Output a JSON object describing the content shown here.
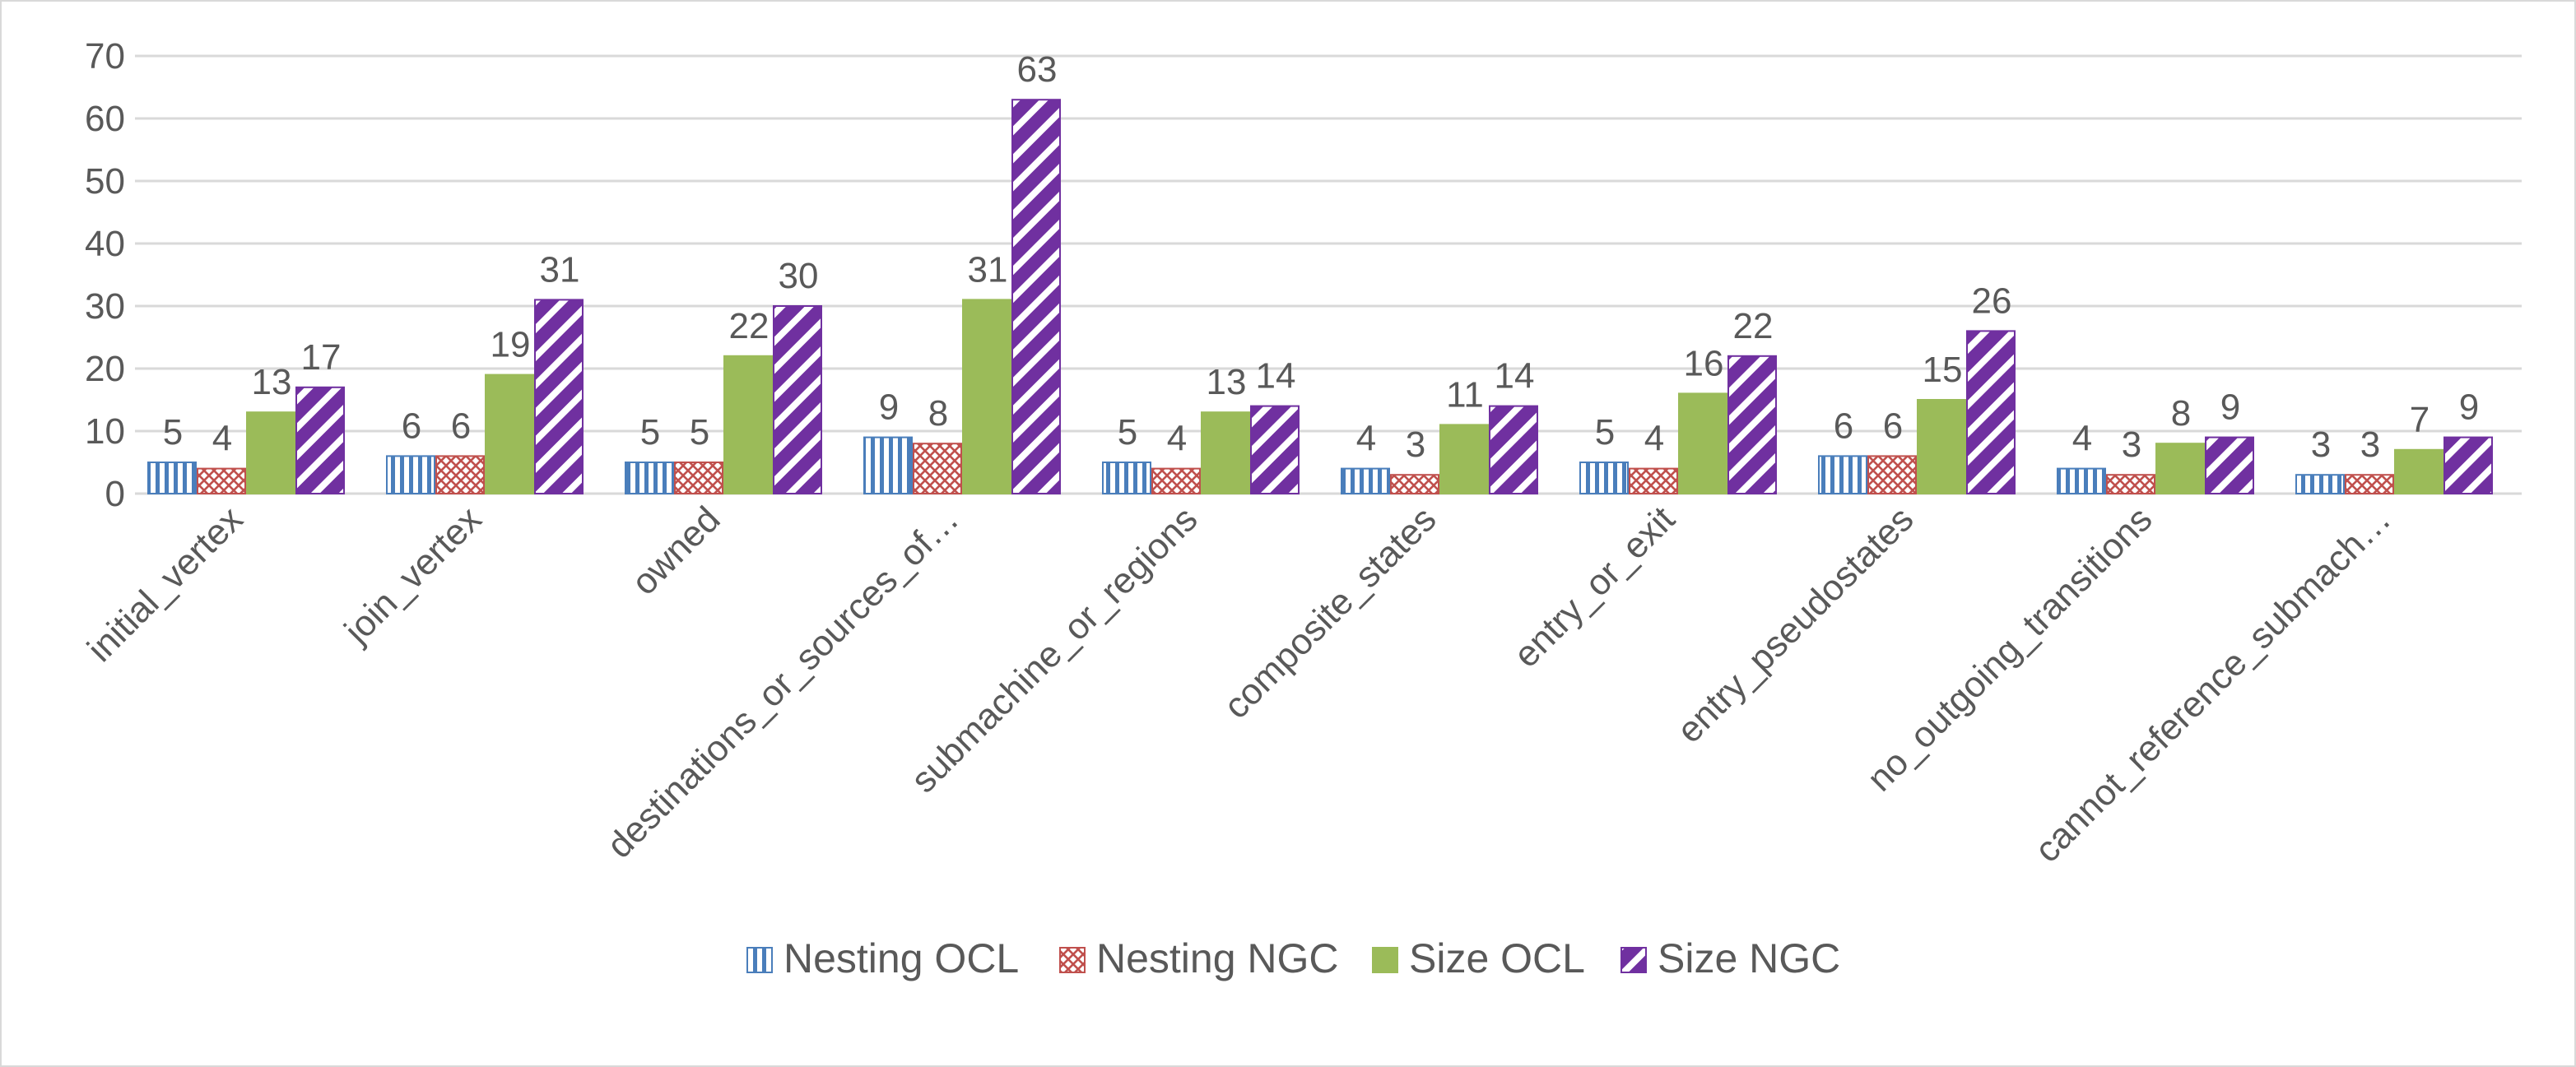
{
  "chart_data": {
    "type": "bar",
    "categories": [
      "initial_vertex",
      "join_vertex",
      "owned",
      "destinations_or_sources_of…",
      "submachine_or_regions",
      "composite_states",
      "entry_or_exit",
      "entry_pseudostates",
      "no_outgoing_transitions",
      "cannot_reference_submach…"
    ],
    "series": [
      {
        "name": "Nesting OCL",
        "values": [
          5,
          6,
          5,
          9,
          5,
          4,
          5,
          6,
          4,
          3
        ],
        "color": "#4a7ebb",
        "pattern": "vertical-lines"
      },
      {
        "name": "Nesting NGC",
        "values": [
          4,
          6,
          5,
          8,
          4,
          3,
          4,
          6,
          3,
          3
        ],
        "color": "#c0504d",
        "pattern": "crosshatch"
      },
      {
        "name": "Size OCL",
        "values": [
          13,
          19,
          22,
          31,
          13,
          11,
          16,
          15,
          8,
          7
        ],
        "color": "#9bbb59",
        "pattern": "solid"
      },
      {
        "name": "Size NGC",
        "values": [
          17,
          31,
          30,
          63,
          14,
          14,
          22,
          26,
          9,
          9
        ],
        "color": "#7030a0",
        "pattern": "diagonal-stripes"
      }
    ],
    "title": "",
    "xlabel": "",
    "ylabel": "",
    "ylim": [
      0,
      70
    ],
    "yticks": [
      0,
      10,
      20,
      30,
      40,
      50,
      60,
      70
    ],
    "grid": true,
    "legend": "bottom",
    "data_labels": true
  }
}
